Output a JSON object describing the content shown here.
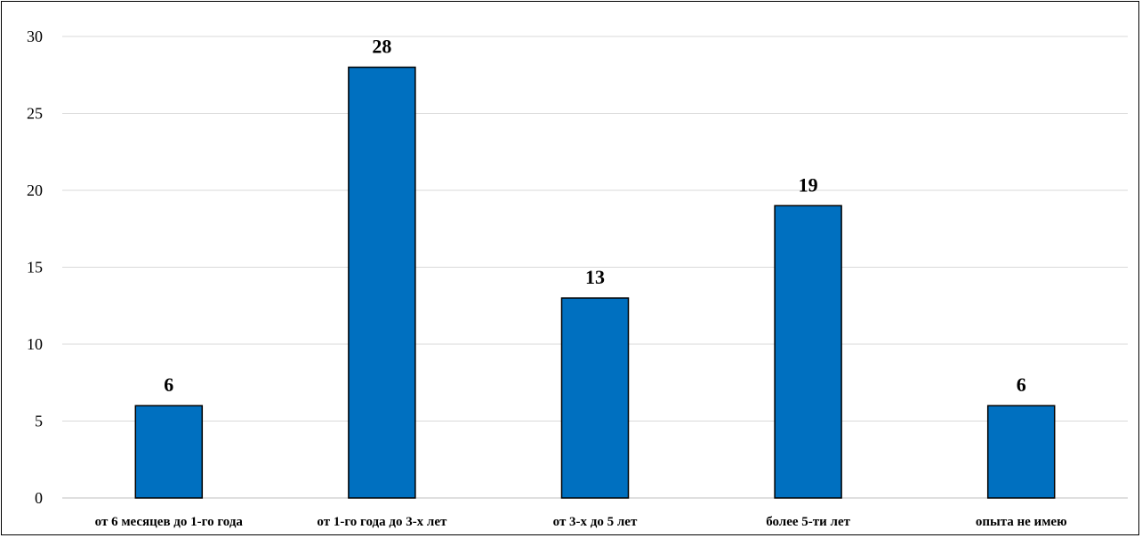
{
  "chart_data": {
    "type": "bar",
    "title": "",
    "xlabel": "",
    "ylabel": "",
    "categories": [
      "от 6 месяцев до 1-го года",
      "от 1-го года до 3-х лет",
      "от 3-х до 5 лет",
      "более 5-ти лет",
      "опыта не имею"
    ],
    "values": [
      6,
      28,
      13,
      19,
      6
    ],
    "ylim": [
      0,
      30
    ],
    "yticks": [
      0,
      5,
      10,
      15,
      20,
      25,
      30
    ],
    "grid": true,
    "legend": "none",
    "data_labels": true,
    "colors": {
      "bar_fill": "#0070C0",
      "bar_stroke": "#000000",
      "grid": "#D9D9D9",
      "axis": "#BFBFBF"
    }
  }
}
